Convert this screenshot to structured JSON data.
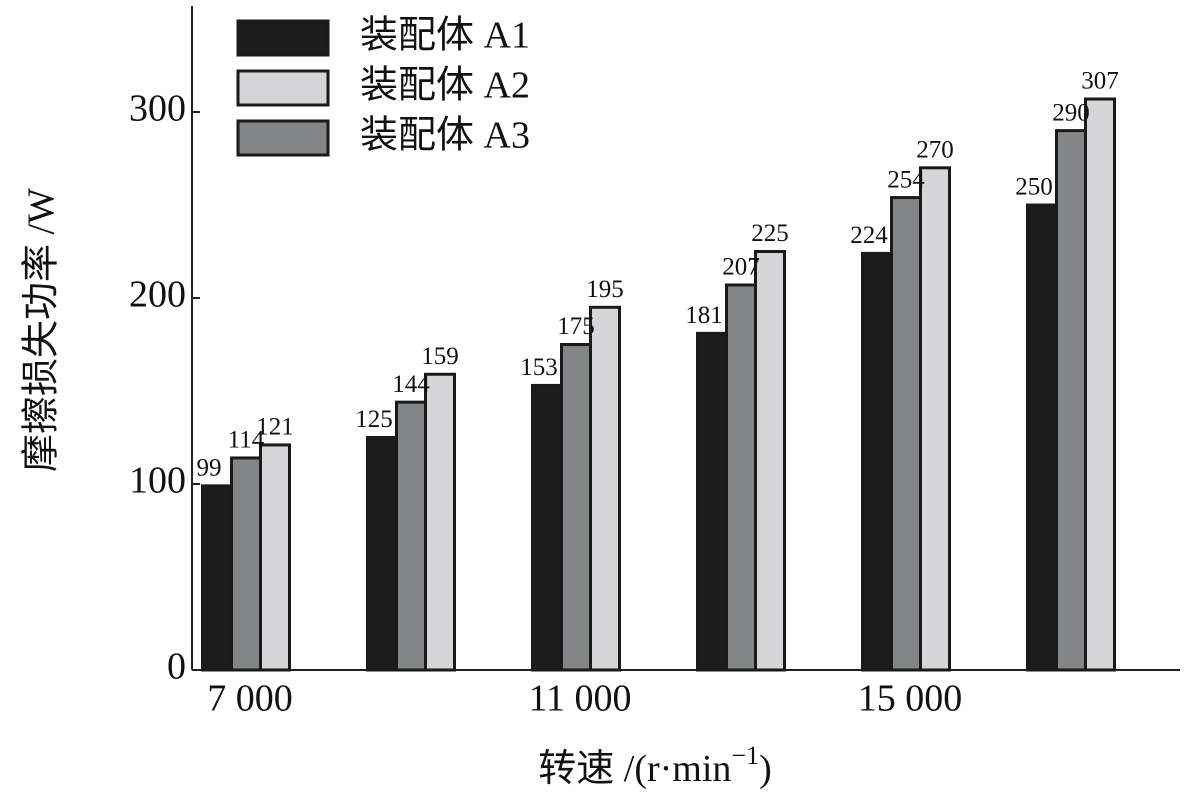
{
  "chart_data": {
    "type": "bar",
    "y_label": "摩擦损失功率 /W",
    "x_label": [
      "转速 /(r·min",
      "−1",
      ")"
    ],
    "categories": [
      "7 000",
      null,
      "11 000",
      null,
      "15 000",
      null
    ],
    "series": [
      {
        "name": "装配体 A1",
        "color": "#1c1c1c",
        "values": [
          99,
          125,
          153,
          181,
          224,
          250
        ]
      },
      {
        "name": "装配体 A2",
        "color": "#d6d6d8",
        "values": [
          121,
          159,
          195,
          225,
          270,
          307
        ]
      },
      {
        "name": "装配体 A3",
        "color": "#838587",
        "values": [
          114,
          144,
          175,
          207,
          254,
          290
        ]
      }
    ],
    "ylim": [
      0,
      357
    ],
    "yticks": [
      0,
      100,
      200,
      300
    ],
    "grid": false,
    "legend": "top-left"
  }
}
